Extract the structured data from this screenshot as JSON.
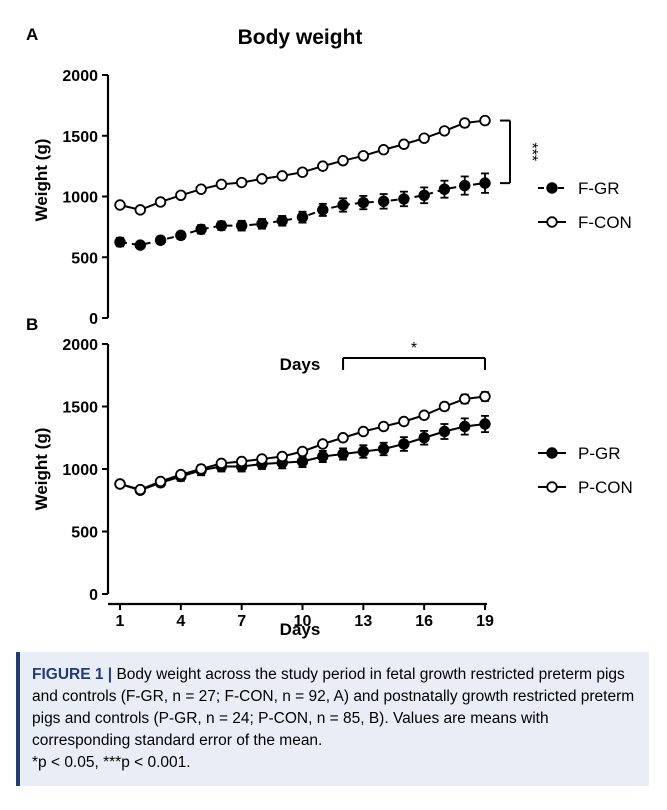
{
  "chart_data": [
    {
      "panel": "A",
      "title": "Body weight",
      "type": "line",
      "ylabel": "Weight (g)",
      "xlabel": "",
      "ylim": [
        0,
        2000
      ],
      "yticks": [
        0,
        500,
        1000,
        1500,
        2000
      ],
      "ytick_labels": [
        "0",
        "500",
        "1000",
        "1500",
        "2000"
      ],
      "x": [
        1,
        2,
        3,
        4,
        5,
        6,
        7,
        8,
        9,
        10,
        11,
        12,
        13,
        14,
        15,
        16,
        17,
        18,
        19
      ],
      "xlim": [
        1,
        19
      ],
      "series": [
        {
          "name": "F-GR",
          "style": "dashed",
          "marker": "filled",
          "values": [
            625,
            600,
            640,
            680,
            730,
            760,
            760,
            775,
            800,
            830,
            890,
            930,
            950,
            960,
            980,
            1010,
            1060,
            1090,
            1110
          ],
          "err": [
            35,
            20,
            30,
            30,
            35,
            35,
            40,
            40,
            40,
            45,
            50,
            55,
            55,
            60,
            60,
            65,
            70,
            75,
            80
          ]
        },
        {
          "name": "F-CON",
          "style": "solid",
          "marker": "open",
          "values": [
            930,
            890,
            955,
            1010,
            1060,
            1100,
            1115,
            1145,
            1170,
            1200,
            1250,
            1295,
            1335,
            1385,
            1430,
            1480,
            1540,
            1605,
            1625
          ],
          "err": [
            15,
            12,
            12,
            15,
            15,
            15,
            15,
            15,
            15,
            15,
            15,
            15,
            20,
            20,
            20,
            25,
            25,
            30,
            30
          ]
        }
      ],
      "annotations": [
        {
          "text": "***",
          "from_series": "F-GR",
          "to_series": "F-CON",
          "at_x": 19
        }
      ]
    },
    {
      "panel": "B",
      "type": "line",
      "ylabel": "Weight (g)",
      "xlabel": "Days",
      "ylim": [
        0,
        2000
      ],
      "yticks": [
        0,
        500,
        1000,
        1500,
        2000
      ],
      "ytick_labels": [
        "0",
        "500",
        "1000",
        "1500",
        "2000"
      ],
      "x": [
        1,
        2,
        3,
        4,
        5,
        6,
        7,
        8,
        9,
        10,
        11,
        12,
        13,
        14,
        15,
        16,
        17,
        18,
        19
      ],
      "xlim": [
        1,
        19
      ],
      "xticks": [
        1,
        4,
        7,
        10,
        13,
        16,
        19
      ],
      "xtick_labels": [
        "1",
        "4",
        "7",
        "10",
        "13",
        "16",
        "19"
      ],
      "series": [
        {
          "name": "P-GR",
          "style": "solid",
          "marker": "filled",
          "values": [
            880,
            830,
            890,
            940,
            990,
            1020,
            1020,
            1040,
            1050,
            1060,
            1100,
            1120,
            1140,
            1160,
            1200,
            1250,
            1300,
            1340,
            1360
          ],
          "err": [
            25,
            25,
            30,
            35,
            40,
            40,
            40,
            40,
            45,
            45,
            45,
            45,
            50,
            50,
            55,
            55,
            60,
            65,
            65
          ]
        },
        {
          "name": "P-CON",
          "style": "solid",
          "marker": "open",
          "values": [
            880,
            835,
            900,
            955,
            1000,
            1045,
            1060,
            1080,
            1100,
            1140,
            1200,
            1250,
            1300,
            1340,
            1380,
            1430,
            1500,
            1560,
            1580
          ],
          "err": [
            15,
            15,
            15,
            15,
            15,
            15,
            15,
            15,
            15,
            20,
            20,
            20,
            20,
            25,
            25,
            25,
            30,
            35,
            35
          ]
        }
      ],
      "annotations": [
        {
          "text": "Days"
        },
        {
          "text": "*",
          "x_from": 12,
          "x_to": 19
        }
      ]
    }
  ],
  "figure_labels": {
    "panel_a": "A",
    "panel_b": "B"
  },
  "caption": {
    "figure_label": "FIGURE 1 |",
    "text": "Body weight across the study period in fetal growth restricted preterm pigs and controls (F-GR, n = 27; F-CON, n = 92, A) and postnatally growth restricted preterm pigs and controls (P-GR, n = 24; P-CON, n = 85, B). Values are means with corresponding standard error of the mean.",
    "footnote": "*p < 0.05, ***p < 0.001."
  }
}
